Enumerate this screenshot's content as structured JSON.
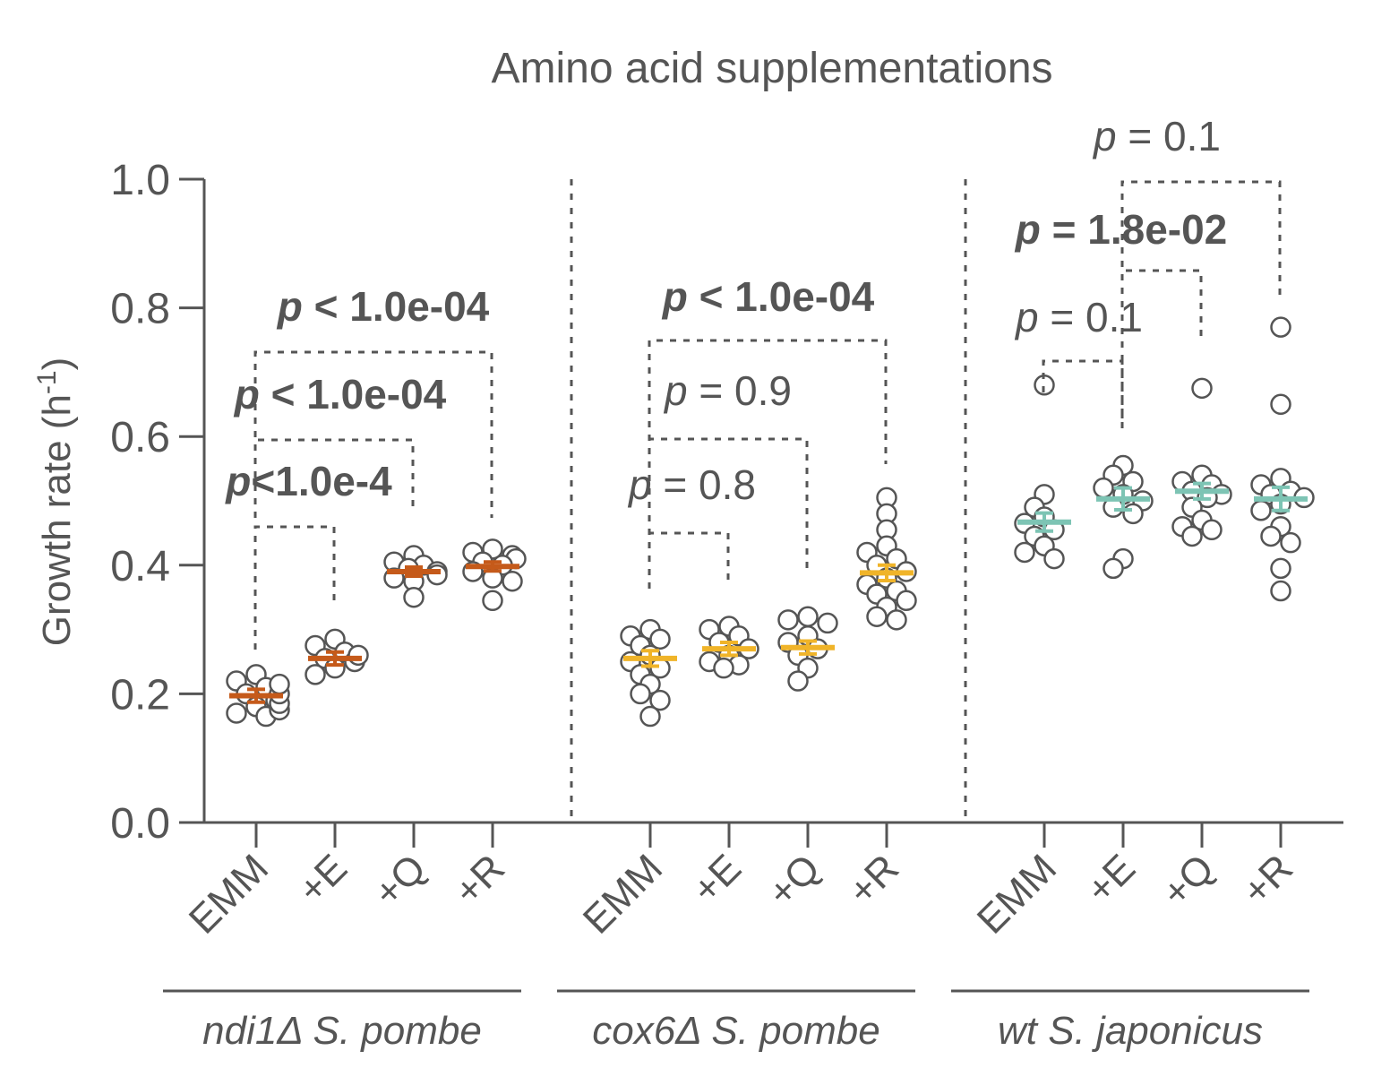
{
  "chart_data": {
    "type": "scatter",
    "title": "Amino acid supplementations",
    "ylabel": "Growth rate (h",
    "ylabel_sup": "-1",
    "ylabel_close": ")",
    "ylim": [
      0,
      1.0
    ],
    "yticks": [
      "0.0",
      "0.2",
      "0.4",
      "0.6",
      "0.8",
      "1.0"
    ],
    "grid": false,
    "groups": [
      {
        "name": "ndi1Δ S. pombe",
        "color": "#c55a1a",
        "categories": [
          {
            "label": "EMM",
            "mean": 0.197,
            "err": 0.01,
            "points": [
              0.23,
              0.22,
              0.21,
              0.2,
              0.19,
              0.18,
              0.17,
              0.165,
              0.175,
              0.185,
              0.2,
              0.215
            ]
          },
          {
            "label": "+E",
            "mean": 0.255,
            "err": 0.01,
            "points": [
              0.285,
              0.275,
              0.265,
              0.255,
              0.25,
              0.24,
              0.23,
              0.26
            ]
          },
          {
            "label": "+Q",
            "mean": 0.39,
            "err": 0.007,
            "points": [
              0.415,
              0.405,
              0.4,
              0.395,
              0.39,
              0.385,
              0.38,
              0.375,
              0.35
            ]
          },
          {
            "label": "+R",
            "mean": 0.398,
            "err": 0.007,
            "points": [
              0.425,
              0.42,
              0.415,
              0.41,
              0.405,
              0.4,
              0.39,
              0.38,
              0.375,
              0.345
            ]
          }
        ],
        "comparisons": [
          {
            "text": "p<1.0e-4",
            "bold": true
          },
          {
            "text": "p < 1.0e-04",
            "bold": true
          },
          {
            "text": "p < 1.0e-04",
            "bold": true
          }
        ]
      },
      {
        "name": "cox6Δ S. pombe",
        "color": "#f0b429",
        "categories": [
          {
            "label": "EMM",
            "mean": 0.255,
            "err": 0.012,
            "points": [
              0.3,
              0.29,
              0.285,
              0.275,
              0.26,
              0.25,
              0.24,
              0.23,
              0.215,
              0.2,
              0.19,
              0.165
            ]
          },
          {
            "label": "+E",
            "mean": 0.27,
            "err": 0.01,
            "points": [
              0.305,
              0.3,
              0.29,
              0.28,
              0.27,
              0.26,
              0.25,
              0.245,
              0.24
            ]
          },
          {
            "label": "+Q",
            "mean": 0.272,
            "err": 0.01,
            "points": [
              0.32,
              0.315,
              0.31,
              0.29,
              0.28,
              0.27,
              0.26,
              0.24,
              0.22
            ]
          },
          {
            "label": "+R",
            "mean": 0.388,
            "err": 0.012,
            "points": [
              0.505,
              0.48,
              0.455,
              0.43,
              0.42,
              0.41,
              0.4,
              0.39,
              0.38,
              0.37,
              0.36,
              0.355,
              0.345,
              0.335,
              0.32,
              0.315
            ]
          }
        ],
        "comparisons": [
          {
            "text": "p = 0.8",
            "bold": false
          },
          {
            "text": "p = 0.9",
            "bold": false
          },
          {
            "text": "p < 1.0e-04",
            "bold": true
          }
        ]
      },
      {
        "name": "wt S. japonicus",
        "color": "#7dc4b4",
        "categories": [
          {
            "label": "EMM",
            "mean": 0.467,
            "err": 0.014,
            "points": [
              0.68,
              0.51,
              0.49,
              0.475,
              0.465,
              0.455,
              0.445,
              0.43,
              0.42,
              0.41
            ]
          },
          {
            "label": "+E",
            "mean": 0.503,
            "err": 0.017,
            "points": [
              0.555,
              0.54,
              0.53,
              0.52,
              0.51,
              0.5,
              0.49,
              0.48,
              0.41,
              0.395
            ]
          },
          {
            "label": "+Q",
            "mean": 0.515,
            "err": 0.012,
            "points": [
              0.675,
              0.54,
              0.53,
              0.525,
              0.515,
              0.51,
              0.505,
              0.49,
              0.47,
              0.46,
              0.455,
              0.445
            ]
          },
          {
            "label": "+R",
            "mean": 0.503,
            "err": 0.018,
            "points": [
              0.77,
              0.65,
              0.535,
              0.525,
              0.515,
              0.51,
              0.505,
              0.495,
              0.485,
              0.46,
              0.445,
              0.435,
              0.395,
              0.36
            ]
          }
        ],
        "comparisons": [
          {
            "text": "p = 0.1",
            "bold": false
          },
          {
            "text": "p = 1.8e-02",
            "bold": true
          },
          {
            "text": "p = 0.1",
            "bold": false
          }
        ]
      }
    ]
  }
}
